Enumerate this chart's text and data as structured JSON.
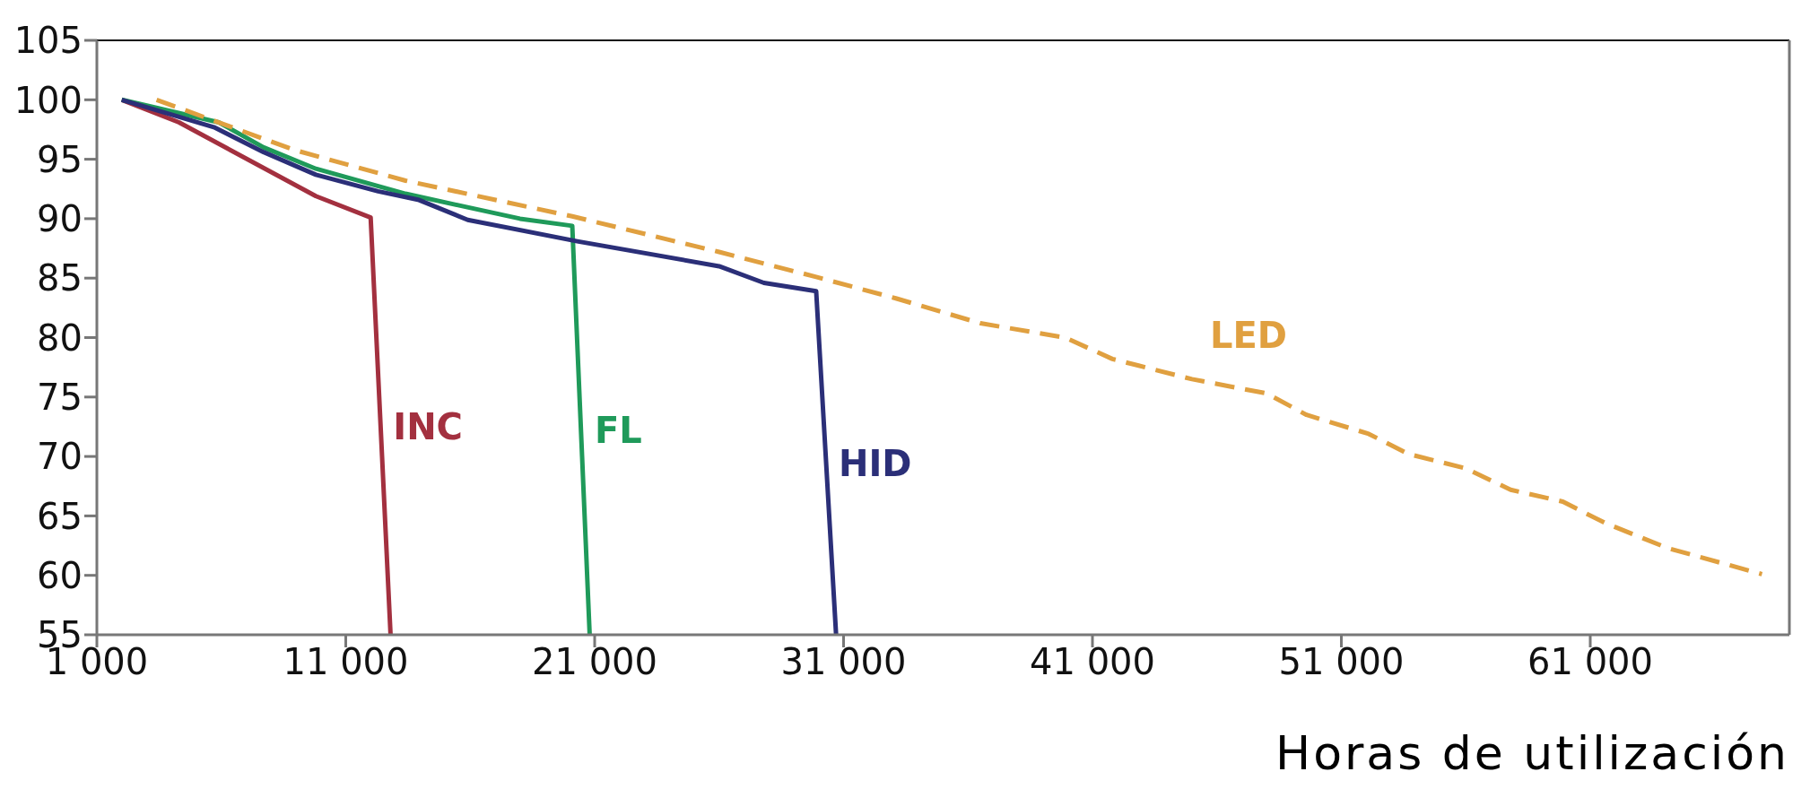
{
  "chart_data": {
    "type": "line",
    "xlabel": "Horas de utilización",
    "xlim": [
      1000,
      69000
    ],
    "xticks": [
      {
        "value": 1000,
        "label": "1 000"
      },
      {
        "value": 11000,
        "label": "11 000"
      },
      {
        "value": 21000,
        "label": "21 000"
      },
      {
        "value": 31000,
        "label": "31 000"
      },
      {
        "value": 41000,
        "label": "41 000"
      },
      {
        "value": 51000,
        "label": "51 000"
      },
      {
        "value": 61000,
        "label": "61 000"
      }
    ],
    "ylim": [
      55,
      105
    ],
    "yticks": [
      55,
      60,
      65,
      70,
      75,
      80,
      85,
      90,
      95,
      100,
      105
    ],
    "legend": false,
    "marker": "none",
    "series": [
      {
        "name": "INC",
        "color": "#a3303f",
        "line_style": "solid",
        "x": [
          2000,
          4300,
          9800,
          12000,
          12800
        ],
        "values": [
          100,
          98.1,
          91.9,
          90.1,
          55
        ]
      },
      {
        "name": "FL",
        "color": "#1f9a5a",
        "line_style": "solid",
        "x": [
          2000,
          5900,
          7700,
          9800,
          13400,
          18000,
          20100,
          20800
        ],
        "values": [
          100,
          98.1,
          96,
          94.2,
          92.1,
          90,
          89.4,
          55
        ]
      },
      {
        "name": "HID",
        "color": "#2b2f78",
        "line_style": "solid",
        "x": [
          2000,
          5700,
          7700,
          9800,
          12300,
          13900,
          15900,
          20300,
          26000,
          27800,
          29900,
          30700
        ],
        "values": [
          100,
          97.7,
          95.6,
          93.7,
          92.3,
          91.6,
          89.9,
          88.1,
          86,
          84.6,
          83.9,
          55
        ]
      },
      {
        "name": "LED",
        "color": "#e0a040",
        "line_style": "dashed",
        "x": [
          3400,
          8900,
          13400,
          20100,
          26000,
          29900,
          33100,
          36500,
          39900,
          41800,
          45000,
          48000,
          49600,
          52100,
          53700,
          56000,
          57800,
          59900,
          61600,
          64100,
          67900
        ],
        "values": [
          100,
          95.8,
          93.2,
          90.2,
          87.2,
          85.1,
          83.3,
          81.2,
          80,
          78.2,
          76.5,
          75.3,
          73.5,
          71.9,
          70.2,
          69,
          67.2,
          66.2,
          64.4,
          62.3,
          60.1
        ]
      }
    ]
  }
}
